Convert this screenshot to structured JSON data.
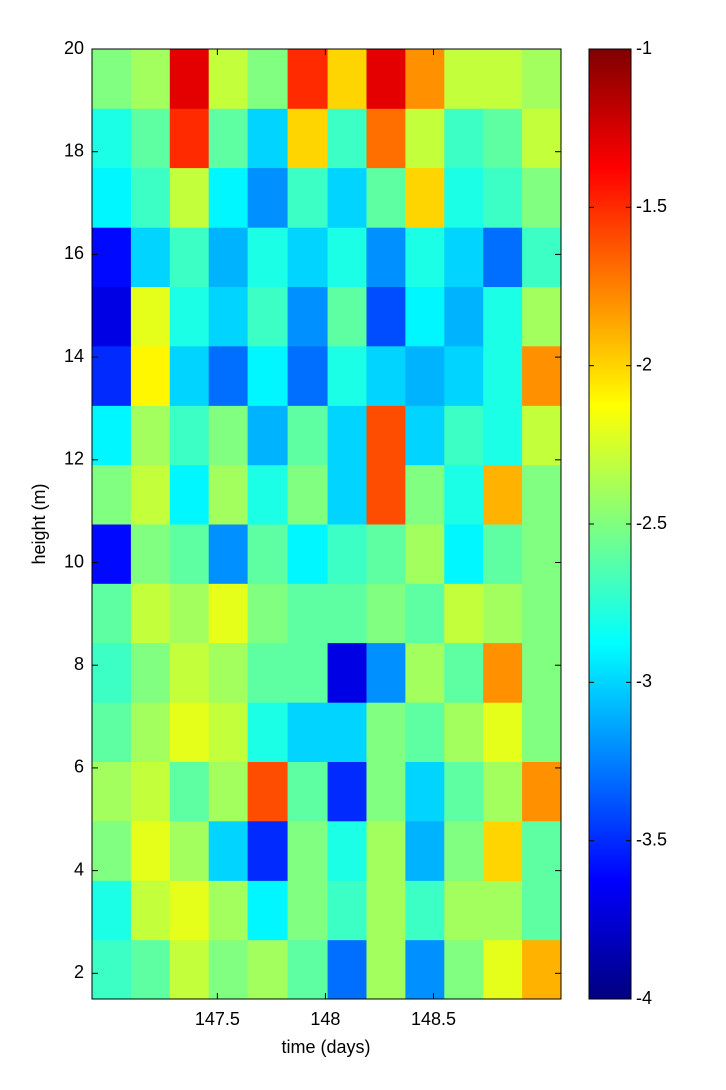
{
  "chart_data": {
    "type": "heatmap",
    "colormap": "jet",
    "xlabel": "time (days)",
    "ylabel": "height (m)",
    "xlim": [
      146.92,
      149.09
    ],
    "xticks": [
      147.5,
      148,
      148.5
    ],
    "ylim": [
      1.5,
      20
    ],
    "yticks": [
      2,
      4,
      6,
      8,
      10,
      12,
      14,
      16,
      18,
      20
    ],
    "clim": [
      -4,
      -1
    ],
    "cticks": [
      -4,
      -3.5,
      -3,
      -2.5,
      -2,
      -1.5,
      -1
    ],
    "x": [
      147.01,
      147.19,
      147.37,
      147.55,
      147.73,
      147.92,
      148.1,
      148.28,
      148.46,
      148.64,
      148.82,
      149.0
    ],
    "y": [
      2.08,
      3.23,
      4.39,
      5.55,
      6.7,
      7.86,
      9.02,
      10.17,
      11.33,
      12.48,
      13.64,
      14.8,
      15.95,
      17.11,
      18.27,
      19.42
    ],
    "z": [
      [
        -2.7,
        -2.6,
        -2.3,
        -2.5,
        -2.4,
        -2.6,
        -3.3,
        -2.4,
        -3.2,
        -2.5,
        -2.2,
        -1.9
      ],
      [
        -2.8,
        -2.3,
        -2.2,
        -2.4,
        -2.9,
        -2.5,
        -2.7,
        -2.4,
        -2.7,
        -2.4,
        -2.4,
        -2.6
      ],
      [
        -2.5,
        -2.2,
        -2.4,
        -3.0,
        -3.5,
        -2.5,
        -2.8,
        -2.4,
        -3.1,
        -2.5,
        -2.0,
        -2.6
      ],
      [
        -2.4,
        -2.3,
        -2.6,
        -2.4,
        -1.6,
        -2.6,
        -3.5,
        -2.5,
        -3.0,
        -2.6,
        -2.4,
        -1.8
      ],
      [
        -2.6,
        -2.4,
        -2.2,
        -2.3,
        -2.8,
        -3.0,
        -3.0,
        -2.5,
        -2.6,
        -2.4,
        -2.2,
        -2.5
      ],
      [
        -2.7,
        -2.5,
        -2.3,
        -2.4,
        -2.6,
        -2.6,
        -3.7,
        -3.2,
        -2.4,
        -2.6,
        -1.8,
        -2.5
      ],
      [
        -2.6,
        -2.3,
        -2.4,
        -2.2,
        -2.5,
        -2.6,
        -2.6,
        -2.5,
        -2.6,
        -2.3,
        -2.4,
        -2.5
      ],
      [
        -3.6,
        -2.5,
        -2.6,
        -3.2,
        -2.6,
        -2.9,
        -2.7,
        -2.6,
        -2.4,
        -2.9,
        -2.6,
        -2.5
      ],
      [
        -2.5,
        -2.3,
        -2.9,
        -2.4,
        -2.8,
        -2.5,
        -3.0,
        -1.6,
        -2.5,
        -2.8,
        -1.9,
        -2.5
      ],
      [
        -2.9,
        -2.4,
        -2.7,
        -2.5,
        -3.1,
        -2.6,
        -3.0,
        -1.6,
        -3.0,
        -2.7,
        -2.8,
        -2.3
      ],
      [
        -3.5,
        -2.1,
        -3.0,
        -3.3,
        -2.9,
        -3.3,
        -2.8,
        -3.0,
        -3.1,
        -3.0,
        -2.8,
        -1.8
      ],
      [
        -3.7,
        -2.2,
        -2.8,
        -3.0,
        -2.7,
        -3.2,
        -2.6,
        -3.4,
        -2.9,
        -3.1,
        -2.8,
        -2.4
      ],
      [
        -3.6,
        -3.0,
        -2.7,
        -3.1,
        -2.8,
        -3.0,
        -2.8,
        -3.2,
        -2.8,
        -3.0,
        -3.3,
        -2.7
      ],
      [
        -2.9,
        -2.7,
        -2.3,
        -2.9,
        -3.2,
        -2.7,
        -3.0,
        -2.6,
        -2.0,
        -2.8,
        -2.7,
        -2.5
      ],
      [
        -2.8,
        -2.6,
        -1.5,
        -2.6,
        -3.0,
        -2.0,
        -2.7,
        -1.7,
        -2.3,
        -2.7,
        -2.6,
        -2.3
      ],
      [
        -2.5,
        -2.4,
        -1.3,
        -2.3,
        -2.5,
        -1.5,
        -2.0,
        -1.3,
        -1.8,
        -2.3,
        -2.3,
        -2.4
      ]
    ]
  }
}
